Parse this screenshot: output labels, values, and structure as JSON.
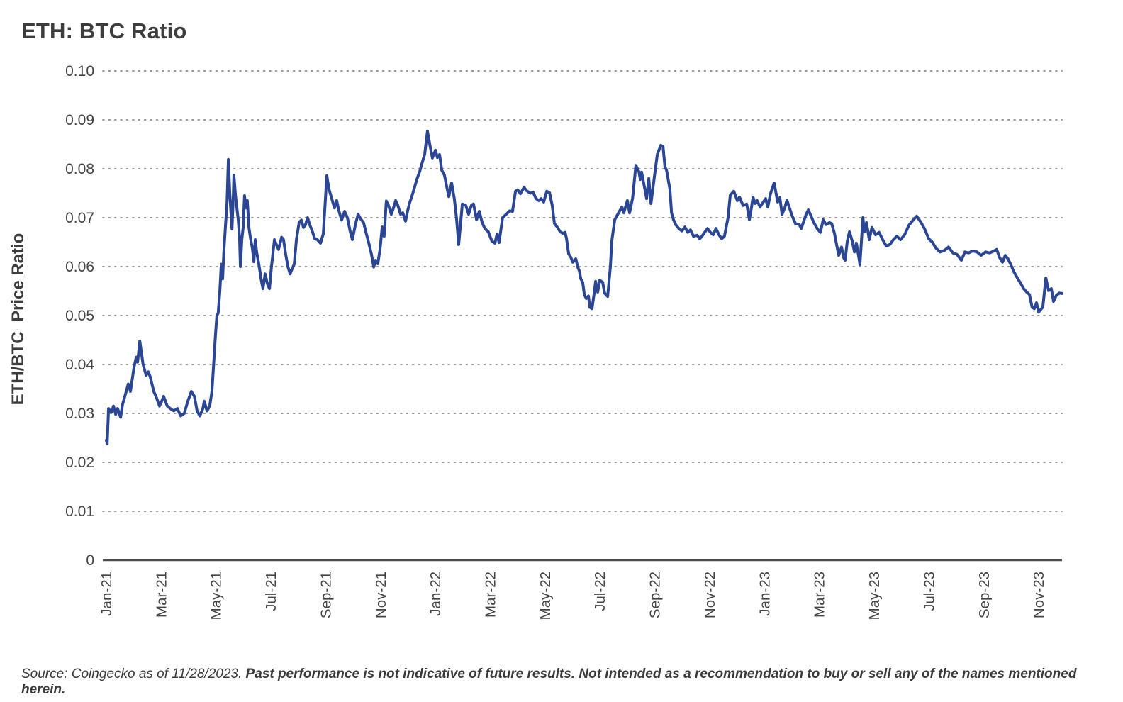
{
  "title": "ETH: BTC Ratio",
  "y_axis_title": "ETH/BTC  Price Ratio",
  "source": {
    "prefix": "Source: Coingecko as of 11/28/2023. ",
    "emphasis": "Past performance is not indicative of future results. Not intended as a recommendation to buy or sell any of the names mentioned herein."
  },
  "colors": {
    "line": "#2A4694",
    "grid": "#9B9B9B",
    "axis": "#4D4D4D",
    "tick_text": "#444444",
    "title_text": "#3D3D3D"
  },
  "chart_data": {
    "type": "line",
    "title": "ETH: BTC Ratio",
    "xlabel": "",
    "ylabel": "ETH/BTC  Price Ratio",
    "ylim": [
      0,
      0.1
    ],
    "y_tick_step": 0.01,
    "y_tick_labels": [
      "0",
      "0.01",
      "0.02",
      "0.03",
      "0.04",
      "0.05",
      "0.06",
      "0.07",
      "0.08",
      "0.09",
      "0.10"
    ],
    "grid": "dotted-horizontal",
    "legend_position": "none",
    "x_unit": "months since Jan-2021",
    "x_tick_months": [
      0,
      2,
      4,
      6,
      8,
      10,
      12,
      14,
      16,
      18,
      20,
      22,
      24,
      26,
      28,
      30,
      32,
      34
    ],
    "x_tick_labels": [
      "Jan-21",
      "Mar-21",
      "May-21",
      "Jul-21",
      "Sep-21",
      "Nov-21",
      "Jan-22",
      "Mar-22",
      "May-22",
      "Jul-22",
      "Sep-22",
      "Nov-22",
      "Jan-23",
      "Mar-23",
      "May-23",
      "Jul-23",
      "Sep-23",
      "Nov-23"
    ],
    "points": [
      [
        0.0,
        0.0245
      ],
      [
        0.03,
        0.0238
      ],
      [
        0.08,
        0.031
      ],
      [
        0.18,
        0.0302
      ],
      [
        0.26,
        0.0315
      ],
      [
        0.34,
        0.0298
      ],
      [
        0.41,
        0.031
      ],
      [
        0.52,
        0.0292
      ],
      [
        0.59,
        0.0318
      ],
      [
        0.7,
        0.034
      ],
      [
        0.8,
        0.036
      ],
      [
        0.88,
        0.0345
      ],
      [
        1.01,
        0.0395
      ],
      [
        1.09,
        0.0415
      ],
      [
        1.14,
        0.0405
      ],
      [
        1.22,
        0.0448
      ],
      [
        1.34,
        0.04
      ],
      [
        1.45,
        0.0378
      ],
      [
        1.53,
        0.0385
      ],
      [
        1.6,
        0.0375
      ],
      [
        1.73,
        0.0345
      ],
      [
        1.81,
        0.0335
      ],
      [
        1.94,
        0.0315
      ],
      [
        2.02,
        0.0325
      ],
      [
        2.09,
        0.0335
      ],
      [
        2.22,
        0.0315
      ],
      [
        2.33,
        0.031
      ],
      [
        2.46,
        0.0305
      ],
      [
        2.59,
        0.031
      ],
      [
        2.71,
        0.0295
      ],
      [
        2.84,
        0.03
      ],
      [
        2.97,
        0.0325
      ],
      [
        3.1,
        0.0345
      ],
      [
        3.21,
        0.0335
      ],
      [
        3.31,
        0.0305
      ],
      [
        3.41,
        0.0295
      ],
      [
        3.52,
        0.031
      ],
      [
        3.57,
        0.0325
      ],
      [
        3.67,
        0.0305
      ],
      [
        3.77,
        0.0315
      ],
      [
        3.85,
        0.0345
      ],
      [
        3.9,
        0.039
      ],
      [
        3.98,
        0.046
      ],
      [
        4.03,
        0.05
      ],
      [
        4.08,
        0.0505
      ],
      [
        4.14,
        0.055
      ],
      [
        4.19,
        0.0605
      ],
      [
        4.24,
        0.0575
      ],
      [
        4.29,
        0.0635
      ],
      [
        4.34,
        0.068
      ],
      [
        4.4,
        0.073
      ],
      [
        4.45,
        0.0819
      ],
      [
        4.5,
        0.075
      ],
      [
        4.58,
        0.0677
      ],
      [
        4.63,
        0.0745
      ],
      [
        4.65,
        0.0787
      ],
      [
        4.71,
        0.0745
      ],
      [
        4.76,
        0.072
      ],
      [
        4.81,
        0.0695
      ],
      [
        4.86,
        0.0655
      ],
      [
        4.89,
        0.06
      ],
      [
        4.94,
        0.0655
      ],
      [
        4.99,
        0.068
      ],
      [
        5.04,
        0.0745
      ],
      [
        5.09,
        0.072
      ],
      [
        5.14,
        0.0735
      ],
      [
        5.2,
        0.068
      ],
      [
        5.25,
        0.066
      ],
      [
        5.33,
        0.0635
      ],
      [
        5.38,
        0.061
      ],
      [
        5.43,
        0.0655
      ],
      [
        5.48,
        0.063
      ],
      [
        5.56,
        0.0605
      ],
      [
        5.64,
        0.0575
      ],
      [
        5.71,
        0.0555
      ],
      [
        5.79,
        0.0585
      ],
      [
        5.87,
        0.0565
      ],
      [
        5.95,
        0.0555
      ],
      [
        6.02,
        0.06
      ],
      [
        6.13,
        0.0655
      ],
      [
        6.2,
        0.0645
      ],
      [
        6.28,
        0.0635
      ],
      [
        6.39,
        0.066
      ],
      [
        6.46,
        0.0655
      ],
      [
        6.54,
        0.0625
      ],
      [
        6.62,
        0.06
      ],
      [
        6.7,
        0.0585
      ],
      [
        6.77,
        0.0595
      ],
      [
        6.85,
        0.0605
      ],
      [
        6.93,
        0.0655
      ],
      [
        7.03,
        0.069
      ],
      [
        7.11,
        0.0695
      ],
      [
        7.19,
        0.068
      ],
      [
        7.26,
        0.0685
      ],
      [
        7.34,
        0.07
      ],
      [
        7.42,
        0.0685
      ],
      [
        7.5,
        0.0674
      ],
      [
        7.6,
        0.0657
      ],
      [
        7.7,
        0.0655
      ],
      [
        7.81,
        0.0648
      ],
      [
        7.91,
        0.0667
      ],
      [
        8.04,
        0.0786
      ],
      [
        8.12,
        0.0758
      ],
      [
        8.22,
        0.0739
      ],
      [
        8.32,
        0.072
      ],
      [
        8.4,
        0.0735
      ],
      [
        8.48,
        0.0714
      ],
      [
        8.58,
        0.0695
      ],
      [
        8.69,
        0.0713
      ],
      [
        8.79,
        0.07
      ],
      [
        8.89,
        0.0672
      ],
      [
        8.97,
        0.0655
      ],
      [
        9.08,
        0.0685
      ],
      [
        9.18,
        0.0707
      ],
      [
        9.28,
        0.0697
      ],
      [
        9.38,
        0.069
      ],
      [
        9.49,
        0.0665
      ],
      [
        9.57,
        0.0648
      ],
      [
        9.67,
        0.0625
      ],
      [
        9.75,
        0.0599
      ],
      [
        9.82,
        0.0613
      ],
      [
        9.9,
        0.0606
      ],
      [
        9.98,
        0.0635
      ],
      [
        10.06,
        0.0681
      ],
      [
        10.13,
        0.0662
      ],
      [
        10.21,
        0.0734
      ],
      [
        10.29,
        0.0725
      ],
      [
        10.39,
        0.0707
      ],
      [
        10.47,
        0.072
      ],
      [
        10.55,
        0.0735
      ],
      [
        10.63,
        0.0725
      ],
      [
        10.73,
        0.0707
      ],
      [
        10.81,
        0.071
      ],
      [
        10.91,
        0.0693
      ],
      [
        10.99,
        0.0715
      ],
      [
        11.07,
        0.0732
      ],
      [
        11.17,
        0.0749
      ],
      [
        11.32,
        0.0778
      ],
      [
        11.43,
        0.0795
      ],
      [
        11.5,
        0.0809
      ],
      [
        11.61,
        0.083
      ],
      [
        11.71,
        0.0877
      ],
      [
        11.81,
        0.0845
      ],
      [
        11.89,
        0.0822
      ],
      [
        12.0,
        0.0838
      ],
      [
        12.07,
        0.0823
      ],
      [
        12.15,
        0.0829
      ],
      [
        12.23,
        0.0797
      ],
      [
        12.33,
        0.0787
      ],
      [
        12.41,
        0.0764
      ],
      [
        12.49,
        0.0743
      ],
      [
        12.59,
        0.0771
      ],
      [
        12.69,
        0.0739
      ],
      [
        12.77,
        0.0699
      ],
      [
        12.85,
        0.0645
      ],
      [
        12.98,
        0.0728
      ],
      [
        13.11,
        0.0725
      ],
      [
        13.21,
        0.0707
      ],
      [
        13.31,
        0.0725
      ],
      [
        13.39,
        0.0728
      ],
      [
        13.5,
        0.0696
      ],
      [
        13.6,
        0.0713
      ],
      [
        13.7,
        0.0691
      ],
      [
        13.8,
        0.0678
      ],
      [
        13.93,
        0.0671
      ],
      [
        14.06,
        0.0652
      ],
      [
        14.17,
        0.0648
      ],
      [
        14.25,
        0.0667
      ],
      [
        14.32,
        0.0649
      ],
      [
        14.45,
        0.07
      ],
      [
        14.58,
        0.0707
      ],
      [
        14.71,
        0.0714
      ],
      [
        14.81,
        0.0713
      ],
      [
        14.92,
        0.0754
      ],
      [
        15.0,
        0.0757
      ],
      [
        15.1,
        0.0749
      ],
      [
        15.23,
        0.0762
      ],
      [
        15.33,
        0.0755
      ],
      [
        15.46,
        0.075
      ],
      [
        15.56,
        0.0752
      ],
      [
        15.67,
        0.0739
      ],
      [
        15.77,
        0.0735
      ],
      [
        15.85,
        0.0739
      ],
      [
        15.95,
        0.0732
      ],
      [
        16.06,
        0.0754
      ],
      [
        16.16,
        0.0751
      ],
      [
        16.26,
        0.0725
      ],
      [
        16.34,
        0.0688
      ],
      [
        16.44,
        0.0681
      ],
      [
        16.55,
        0.0671
      ],
      [
        16.65,
        0.0668
      ],
      [
        16.73,
        0.067
      ],
      [
        16.78,
        0.0657
      ],
      [
        16.86,
        0.0626
      ],
      [
        16.93,
        0.062
      ],
      [
        17.01,
        0.0609
      ],
      [
        17.12,
        0.0616
      ],
      [
        17.19,
        0.0599
      ],
      [
        17.25,
        0.0591
      ],
      [
        17.3,
        0.0575
      ],
      [
        17.37,
        0.0568
      ],
      [
        17.43,
        0.0543
      ],
      [
        17.5,
        0.0535
      ],
      [
        17.58,
        0.054
      ],
      [
        17.63,
        0.0517
      ],
      [
        17.71,
        0.0514
      ],
      [
        17.79,
        0.0546
      ],
      [
        17.84,
        0.057
      ],
      [
        17.92,
        0.0548
      ],
      [
        17.99,
        0.0572
      ],
      [
        18.1,
        0.0568
      ],
      [
        18.17,
        0.0546
      ],
      [
        18.28,
        0.0539
      ],
      [
        18.38,
        0.0599
      ],
      [
        18.43,
        0.0652
      ],
      [
        18.54,
        0.0696
      ],
      [
        18.61,
        0.0703
      ],
      [
        18.8,
        0.0722
      ],
      [
        18.87,
        0.071
      ],
      [
        19.0,
        0.0735
      ],
      [
        19.08,
        0.071
      ],
      [
        19.19,
        0.074
      ],
      [
        19.31,
        0.0807
      ],
      [
        19.42,
        0.0794
      ],
      [
        19.47,
        0.0778
      ],
      [
        19.52,
        0.0793
      ],
      [
        19.65,
        0.0754
      ],
      [
        19.7,
        0.0739
      ],
      [
        19.78,
        0.078
      ],
      [
        19.86,
        0.0729
      ],
      [
        19.99,
        0.0786
      ],
      [
        20.09,
        0.0829
      ],
      [
        20.22,
        0.0848
      ],
      [
        20.3,
        0.0845
      ],
      [
        20.37,
        0.0804
      ],
      [
        20.43,
        0.0797
      ],
      [
        20.55,
        0.0758
      ],
      [
        20.61,
        0.071
      ],
      [
        20.68,
        0.0696
      ],
      [
        20.76,
        0.0686
      ],
      [
        20.89,
        0.0677
      ],
      [
        20.99,
        0.0673
      ],
      [
        21.1,
        0.0681
      ],
      [
        21.2,
        0.067
      ],
      [
        21.3,
        0.0675
      ],
      [
        21.41,
        0.0662
      ],
      [
        21.54,
        0.0664
      ],
      [
        21.64,
        0.0657
      ],
      [
        21.72,
        0.0662
      ],
      [
        21.82,
        0.067
      ],
      [
        21.92,
        0.0678
      ],
      [
        22.03,
        0.067
      ],
      [
        22.13,
        0.0665
      ],
      [
        22.23,
        0.0678
      ],
      [
        22.34,
        0.0665
      ],
      [
        22.44,
        0.0657
      ],
      [
        22.54,
        0.0662
      ],
      [
        22.67,
        0.07
      ],
      [
        22.75,
        0.0746
      ],
      [
        22.88,
        0.0754
      ],
      [
        23.01,
        0.0735
      ],
      [
        23.09,
        0.0742
      ],
      [
        23.22,
        0.0725
      ],
      [
        23.35,
        0.0728
      ],
      [
        23.45,
        0.0696
      ],
      [
        23.53,
        0.0722
      ],
      [
        23.58,
        0.0742
      ],
      [
        23.66,
        0.0729
      ],
      [
        23.73,
        0.0735
      ],
      [
        23.84,
        0.0722
      ],
      [
        23.91,
        0.0728
      ],
      [
        24.04,
        0.0739
      ],
      [
        24.12,
        0.0722
      ],
      [
        24.22,
        0.0749
      ],
      [
        24.35,
        0.0771
      ],
      [
        24.48,
        0.0732
      ],
      [
        24.56,
        0.0741
      ],
      [
        24.64,
        0.0707
      ],
      [
        24.74,
        0.072
      ],
      [
        24.82,
        0.0736
      ],
      [
        25.0,
        0.0705
      ],
      [
        25.13,
        0.0688
      ],
      [
        25.26,
        0.0687
      ],
      [
        25.34,
        0.0678
      ],
      [
        25.52,
        0.0707
      ],
      [
        25.6,
        0.0716
      ],
      [
        25.67,
        0.0707
      ],
      [
        25.8,
        0.069
      ],
      [
        25.93,
        0.0677
      ],
      [
        26.04,
        0.067
      ],
      [
        26.14,
        0.0696
      ],
      [
        26.24,
        0.0686
      ],
      [
        26.37,
        0.069
      ],
      [
        26.45,
        0.0688
      ],
      [
        26.55,
        0.0668
      ],
      [
        26.63,
        0.0645
      ],
      [
        26.71,
        0.0623
      ],
      [
        26.81,
        0.064
      ],
      [
        26.89,
        0.0618
      ],
      [
        26.94,
        0.0613
      ],
      [
        27.02,
        0.0652
      ],
      [
        27.1,
        0.0671
      ],
      [
        27.2,
        0.0652
      ],
      [
        27.28,
        0.063
      ],
      [
        27.35,
        0.0648
      ],
      [
        27.46,
        0.0612
      ],
      [
        27.48,
        0.0604
      ],
      [
        27.59,
        0.07
      ],
      [
        27.64,
        0.0671
      ],
      [
        27.72,
        0.069
      ],
      [
        27.82,
        0.0655
      ],
      [
        27.92,
        0.068
      ],
      [
        28.05,
        0.0665
      ],
      [
        28.18,
        0.067
      ],
      [
        28.31,
        0.0655
      ],
      [
        28.44,
        0.0642
      ],
      [
        28.57,
        0.0645
      ],
      [
        28.7,
        0.0655
      ],
      [
        28.83,
        0.0662
      ],
      [
        28.96,
        0.0655
      ],
      [
        29.11,
        0.0665
      ],
      [
        29.27,
        0.0685
      ],
      [
        29.42,
        0.0695
      ],
      [
        29.55,
        0.0703
      ],
      [
        29.71,
        0.069
      ],
      [
        29.84,
        0.0677
      ],
      [
        29.99,
        0.0657
      ],
      [
        30.12,
        0.065
      ],
      [
        30.25,
        0.0638
      ],
      [
        30.4,
        0.063
      ],
      [
        30.56,
        0.0633
      ],
      [
        30.71,
        0.064
      ],
      [
        30.87,
        0.0628
      ],
      [
        31.02,
        0.0625
      ],
      [
        31.18,
        0.0613
      ],
      [
        31.31,
        0.063
      ],
      [
        31.44,
        0.0628
      ],
      [
        31.59,
        0.0632
      ],
      [
        31.75,
        0.063
      ],
      [
        31.9,
        0.0623
      ],
      [
        32.06,
        0.063
      ],
      [
        32.21,
        0.0628
      ],
      [
        32.37,
        0.0632
      ],
      [
        32.47,
        0.0635
      ],
      [
        32.57,
        0.0619
      ],
      [
        32.68,
        0.0609
      ],
      [
        32.78,
        0.0623
      ],
      [
        32.88,
        0.0616
      ],
      [
        32.99,
        0.0603
      ],
      [
        33.09,
        0.059
      ],
      [
        33.22,
        0.0577
      ],
      [
        33.35,
        0.0565
      ],
      [
        33.45,
        0.0555
      ],
      [
        33.56,
        0.0548
      ],
      [
        33.66,
        0.0543
      ],
      [
        33.76,
        0.0517
      ],
      [
        33.84,
        0.0514
      ],
      [
        33.92,
        0.0526
      ],
      [
        34.0,
        0.0507
      ],
      [
        34.07,
        0.0512
      ],
      [
        34.15,
        0.0517
      ],
      [
        34.26,
        0.0577
      ],
      [
        34.36,
        0.0551
      ],
      [
        34.46,
        0.0555
      ],
      [
        34.54,
        0.0529
      ],
      [
        34.64,
        0.0541
      ],
      [
        34.75,
        0.0546
      ],
      [
        34.85,
        0.0545
      ]
    ]
  }
}
